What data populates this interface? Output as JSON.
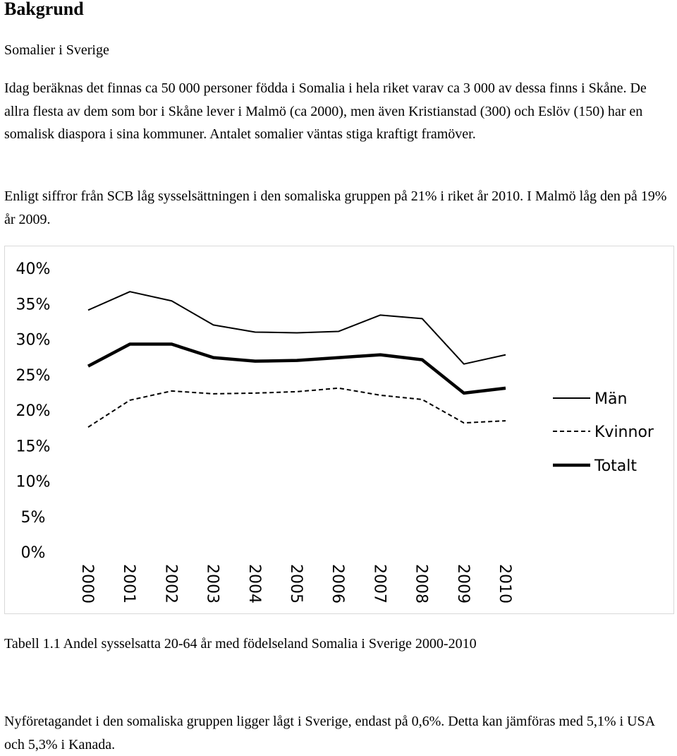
{
  "heading": "Bakgrund",
  "subheading": "Somalier i Sverige",
  "paragraph1": "Idag beräknas det finnas ca 50 000 personer födda i Somalia i hela riket varav ca 3 000 av dessa finns i Skåne. De allra flesta av dem som bor i Skåne lever i Malmö (ca 2000), men även Kristianstad (300) och Eslöv (150) har en somalisk diaspora i sina kommuner. Antalet somalier väntas stiga kraftigt framöver.",
  "paragraph2": "Enligt siffror från SCB låg sysselsättningen i den somaliska gruppen på 21% i riket år 2010. I Malmö låg den på 19% år 2009.",
  "caption": "Tabell 1.1 Andel sysselsatta 20-64 år med födelseland Somalia i Sverige 2000-2010",
  "paragraph3": "Nyföretagandet i den somaliska gruppen ligger lågt i Sverige, endast på 0,6%. Detta kan jämföras med 5,1% i USA och 5,3% i Kanada.",
  "chart_data": {
    "type": "line",
    "x": [
      "2000",
      "2001",
      "2002",
      "2003",
      "2004",
      "2005",
      "2006",
      "2007",
      "2008",
      "2009",
      "2010"
    ],
    "y_ticks": [
      "0%",
      "5%",
      "10%",
      "15%",
      "20%",
      "25%",
      "30%",
      "35%",
      "40%"
    ],
    "ylim": [
      0,
      40
    ],
    "grid": false,
    "legend_position": "right",
    "series": [
      {
        "name": "Män",
        "style": "solid",
        "weight": "thin",
        "color": "#000000",
        "values": [
          34,
          36.6,
          35.3,
          31.9,
          30.9,
          30.8,
          31.0,
          33.3,
          32.8,
          26.4,
          27.7
        ]
      },
      {
        "name": "Kvinnor",
        "style": "dashed",
        "weight": "thin",
        "color": "#000000",
        "values": [
          17.5,
          21.3,
          22.6,
          22.2,
          22.3,
          22.5,
          23.0,
          22.0,
          21.4,
          18.1,
          18.4
        ]
      },
      {
        "name": "Totalt",
        "style": "solid",
        "weight": "thick",
        "color": "#000000",
        "values": [
          26.1,
          29.2,
          29.2,
          27.3,
          26.8,
          26.9,
          27.3,
          27.7,
          27.0,
          22.3,
          23.0
        ]
      }
    ]
  }
}
